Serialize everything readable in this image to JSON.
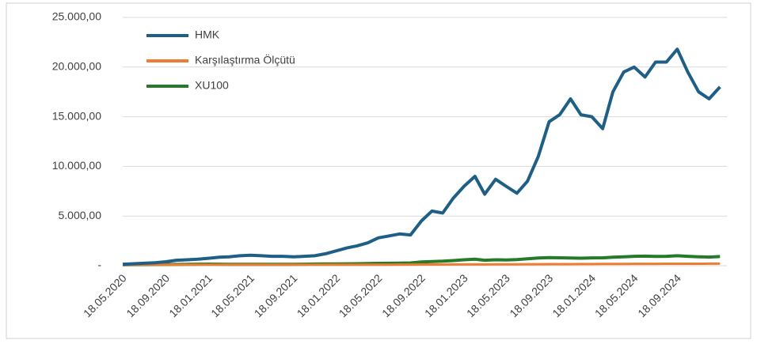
{
  "chart_data": {
    "type": "line",
    "x": [
      "18.05.2020",
      "18.06.2020",
      "18.07.2020",
      "18.08.2020",
      "18.09.2020",
      "18.10.2020",
      "18.11.2020",
      "18.12.2020",
      "18.01.2021",
      "18.02.2021",
      "18.03.2021",
      "18.04.2021",
      "18.05.2021",
      "18.06.2021",
      "18.07.2021",
      "18.08.2021",
      "18.09.2021",
      "18.10.2021",
      "18.11.2021",
      "18.12.2021",
      "18.01.2022",
      "18.02.2022",
      "18.03.2022",
      "18.04.2022",
      "18.05.2022",
      "18.06.2022",
      "18.07.2022",
      "18.08.2022",
      "18.09.2022",
      "18.10.2022",
      "18.11.2022",
      "18.12.2022",
      "18.01.2023",
      "18.02.2023",
      "18.03.2023",
      "18.04.2023",
      "18.05.2023",
      "18.06.2023",
      "18.07.2023",
      "18.08.2023",
      "18.09.2023",
      "18.10.2023",
      "18.11.2023",
      "18.12.2023",
      "18.01.2024",
      "18.02.2024",
      "18.03.2024",
      "18.04.2024",
      "18.05.2024",
      "18.06.2024",
      "18.07.2024",
      "18.08.2024",
      "18.09.2024",
      "18.10.2024",
      "18.11.2024",
      "18.12.2024",
      "18.01.2025"
    ],
    "xlim": [
      "18.05.2020",
      "31.01.2025"
    ],
    "xticks": [
      "18.05.2020",
      "18.09.2020",
      "18.01.2021",
      "18.05.2021",
      "18.09.2021",
      "18.01.2022",
      "18.05.2022",
      "18.09.2022",
      "18.01.2023",
      "18.05.2023",
      "18.09.2023",
      "18.01.2024",
      "18.05.2024",
      "18.09.2024"
    ],
    "series": [
      {
        "name": "HMK",
        "color": "#1f5f86",
        "values": [
          150,
          200,
          250,
          300,
          400,
          550,
          600,
          650,
          750,
          850,
          900,
          1000,
          1050,
          1000,
          950,
          950,
          900,
          950,
          1000,
          1200,
          1500,
          1800,
          2000,
          2300,
          2800,
          3000,
          3200,
          3100,
          4500,
          5500,
          5300,
          6800,
          8000,
          9000,
          7200,
          8700,
          8000,
          7300,
          8500,
          11000,
          14500,
          15200,
          16800,
          15200,
          15000,
          13800,
          17500,
          19500,
          20000,
          19000,
          20500,
          20500,
          21800,
          19500,
          17500,
          16800,
          18000
        ]
      },
      {
        "name": "Karşılaştırma Ölçütü",
        "color": "#ed7d31",
        "values": [
          100,
          100,
          100,
          100,
          100,
          100,
          100,
          100,
          100,
          100,
          100,
          100,
          100,
          100,
          100,
          100,
          100,
          100,
          100,
          100,
          100,
          100,
          100,
          100,
          100,
          100,
          110,
          110,
          120,
          120,
          120,
          130,
          130,
          130,
          130,
          140,
          140,
          140,
          150,
          150,
          160,
          160,
          160,
          170,
          170,
          180,
          180,
          180,
          190,
          190,
          190,
          200,
          200,
          200,
          200,
          210,
          210
        ]
      },
      {
        "name": "XU100",
        "color": "#267a2a",
        "values": [
          100,
          110,
          110,
          120,
          120,
          130,
          140,
          150,
          160,
          150,
          140,
          140,
          140,
          140,
          140,
          140,
          140,
          150,
          170,
          180,
          180,
          190,
          200,
          220,
          240,
          250,
          260,
          280,
          380,
          420,
          450,
          520,
          600,
          650,
          550,
          600,
          580,
          620,
          700,
          780,
          820,
          800,
          780,
          760,
          790,
          800,
          850,
          900,
          950,
          960,
          930,
          950,
          1000,
          950,
          900,
          870,
          920
        ]
      }
    ],
    "ylim": [
      0,
      25000
    ],
    "yticks": [
      {
        "value": 0,
        "label": "-"
      },
      {
        "value": 5000,
        "label": "5.000,00"
      },
      {
        "value": 10000,
        "label": "10.000,00"
      },
      {
        "value": 15000,
        "label": "15.000,00"
      },
      {
        "value": 20000,
        "label": "20.000,00"
      },
      {
        "value": 25000,
        "label": "25.000,00"
      }
    ],
    "grid": true,
    "legend": "upper left"
  }
}
